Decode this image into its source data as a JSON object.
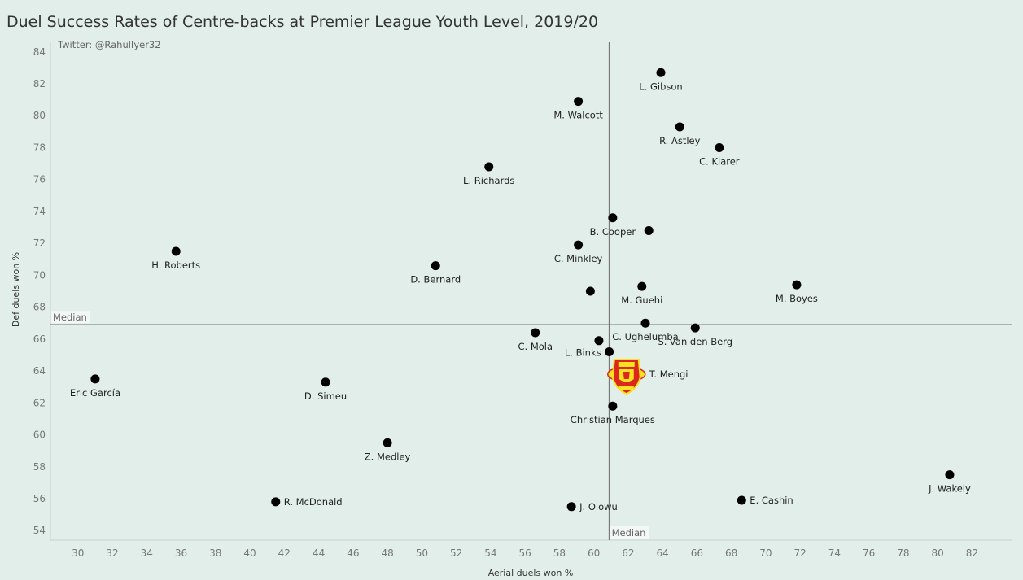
{
  "chart_data": {
    "type": "scatter",
    "title": "Duel Success Rates of Centre-backs at Premier League Youth Level, 2019/20",
    "credit": "Twitter: @RahulIyer32",
    "xlabel": "Aerial duels won %",
    "ylabel": "Def duels won %",
    "xlim": [
      28.4,
      84.3
    ],
    "ylim": [
      53.4,
      84.6
    ],
    "xticks": [
      30,
      32,
      34,
      36,
      38,
      40,
      42,
      44,
      46,
      48,
      50,
      52,
      54,
      56,
      58,
      60,
      62,
      64,
      66,
      68,
      70,
      72,
      74,
      76,
      78,
      80,
      82
    ],
    "yticks": [
      54,
      56,
      58,
      60,
      62,
      64,
      66,
      68,
      70,
      72,
      74,
      76,
      78,
      80,
      82,
      84
    ],
    "grid": false,
    "median": {
      "label": "Median",
      "x": 60.9,
      "y": 66.9
    },
    "highlight": {
      "name": "T. Mengi",
      "marker": "manchester-united-crest"
    },
    "points": [
      {
        "name": "L. Gibson",
        "x": 63.9,
        "y": 82.7,
        "label_pos": "below"
      },
      {
        "name": "M. Walcott",
        "x": 59.1,
        "y": 80.9,
        "label_pos": "below"
      },
      {
        "name": "R. Astley",
        "x": 65.0,
        "y": 79.3,
        "label_pos": "below"
      },
      {
        "name": "C. Klarer",
        "x": 67.3,
        "y": 78.0,
        "label_pos": "below"
      },
      {
        "name": "L. Richards",
        "x": 53.9,
        "y": 76.8,
        "label_pos": "below"
      },
      {
        "name": "B. Cooper",
        "x": 61.1,
        "y": 73.6,
        "label_pos": "below"
      },
      {
        "name": "",
        "x": 63.2,
        "y": 72.8,
        "label_pos": "none"
      },
      {
        "name": "C. Minkley",
        "x": 59.1,
        "y": 71.9,
        "label_pos": "below"
      },
      {
        "name": "H. Roberts",
        "x": 35.7,
        "y": 71.5,
        "label_pos": "below"
      },
      {
        "name": "D. Bernard",
        "x": 50.8,
        "y": 70.6,
        "label_pos": "below"
      },
      {
        "name": "",
        "x": 59.8,
        "y": 69.0,
        "label_pos": "none"
      },
      {
        "name": "M. Guehi",
        "x": 62.8,
        "y": 69.3,
        "label_pos": "below"
      },
      {
        "name": "M. Boyes",
        "x": 71.8,
        "y": 69.4,
        "label_pos": "below"
      },
      {
        "name": "C. Ughelumba",
        "x": 63.0,
        "y": 67.0,
        "label_pos": "below"
      },
      {
        "name": "S. van den Berg",
        "x": 65.9,
        "y": 66.7,
        "label_pos": "below"
      },
      {
        "name": "C. Mola",
        "x": 56.6,
        "y": 66.4,
        "label_pos": "below"
      },
      {
        "name": "",
        "x": 60.3,
        "y": 65.9,
        "label_pos": "none"
      },
      {
        "name": "L. Binks",
        "x": 60.9,
        "y": 65.2,
        "label_pos": "left"
      },
      {
        "name": "Eric García",
        "x": 31.0,
        "y": 63.5,
        "label_pos": "below"
      },
      {
        "name": "D. Simeu",
        "x": 44.4,
        "y": 63.3,
        "label_pos": "below"
      },
      {
        "name": "Christian Marques",
        "x": 61.1,
        "y": 61.8,
        "label_pos": "below"
      },
      {
        "name": "Z. Medley",
        "x": 48.0,
        "y": 59.5,
        "label_pos": "below"
      },
      {
        "name": "J. Wakely",
        "x": 80.7,
        "y": 57.5,
        "label_pos": "below"
      },
      {
        "name": "R. McDonald",
        "x": 41.5,
        "y": 55.8,
        "label_pos": "right"
      },
      {
        "name": "E. Cashin",
        "x": 68.6,
        "y": 55.9,
        "label_pos": "right"
      },
      {
        "name": "J. Olowu",
        "x": 58.7,
        "y": 55.5,
        "label_pos": "right"
      },
      {
        "name": "T. Mengi",
        "x": 61.9,
        "y": 63.8,
        "label_pos": "right",
        "highlight": true
      }
    ],
    "colors": {
      "background": "#e1eeea",
      "points": "#000000",
      "median_line": "#777777",
      "crest_red": "#da291c",
      "crest_gold": "#fbe122"
    }
  }
}
